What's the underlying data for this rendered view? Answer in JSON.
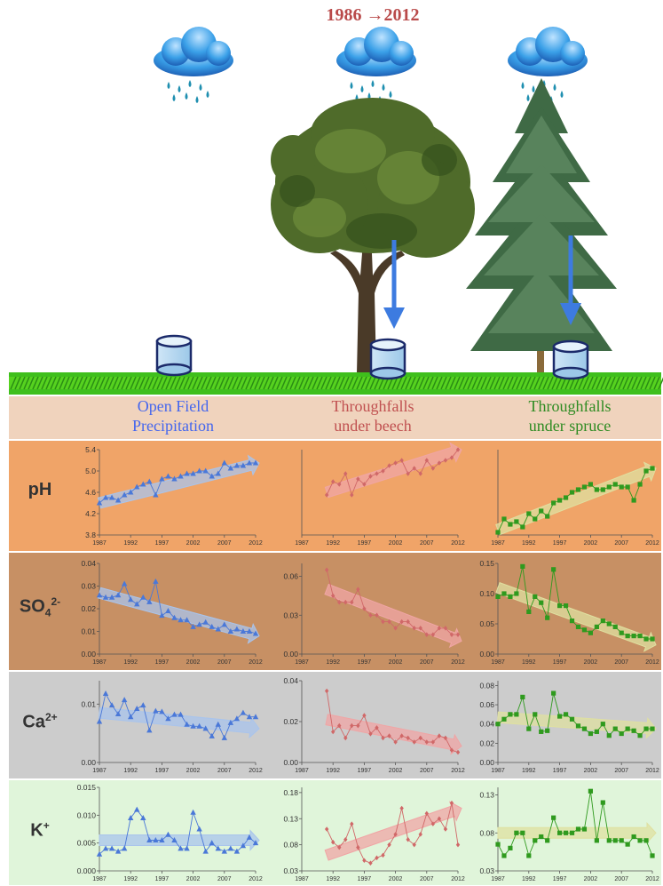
{
  "period_label": "1986 →2012",
  "columns": [
    {
      "label_line1": "Open Field",
      "label_line2": "Precipitation",
      "color": "#4466ee"
    },
    {
      "label_line1": "Throughfalls",
      "label_line2": "under beech",
      "color": "#c05050"
    },
    {
      "label_line1": "Throughfalls",
      "label_line2": "under spruce",
      "color": "#2e8b22"
    }
  ],
  "rows": [
    {
      "label": "pH",
      "sup": "",
      "sub": "",
      "band_color": "#f0a468"
    },
    {
      "label": "SO",
      "sub": "4",
      "sup": "2-",
      "band_color": "#c79064"
    },
    {
      "label": "Ca",
      "sub": "",
      "sup": "2+",
      "band_color": "#cccccc"
    },
    {
      "label": "K",
      "sub": "",
      "sup": "+",
      "band_color": "#e0f5da"
    }
  ],
  "x_tick_labels": [
    "1987",
    "1992",
    "1997",
    "2002",
    "2007",
    "2012"
  ],
  "series_colors": {
    "open_field": "#4a78d8",
    "beech": "#d06868",
    "spruce": "#2f9a1e"
  },
  "trend_colors": {
    "open_field": "#a9c4ec",
    "beech": "#f0a5a5",
    "spruce": "#dfe0a0"
  },
  "chart_data": [
    {
      "type": "line",
      "row": "pH",
      "column": "Open Field Precipitation",
      "marker": "triangle",
      "x": [
        1987,
        1988,
        1989,
        1990,
        1991,
        1992,
        1993,
        1994,
        1995,
        1996,
        1997,
        1998,
        1999,
        2000,
        2001,
        2002,
        2003,
        2004,
        2005,
        2006,
        2007,
        2008,
        2009,
        2010,
        2011,
        2012
      ],
      "values": [
        4.4,
        4.5,
        4.5,
        4.45,
        4.55,
        4.6,
        4.7,
        4.75,
        4.8,
        4.55,
        4.85,
        4.9,
        4.85,
        4.9,
        4.95,
        4.95,
        5.0,
        5.0,
        4.9,
        4.95,
        5.15,
        5.05,
        5.1,
        5.1,
        5.15,
        5.15
      ],
      "ylim": [
        3.8,
        5.4
      ],
      "yticks": [
        "3.8",
        "4.2",
        "4.6",
        "5.0",
        "5.4"
      ],
      "ytick_values": [
        3.8,
        4.2,
        4.6,
        5.0,
        5.4
      ],
      "trend": [
        4.4,
        5.15
      ],
      "xlim": [
        1987,
        2012
      ]
    },
    {
      "type": "line",
      "row": "pH",
      "column": "Throughfalls under beech",
      "marker": "diamond",
      "x": [
        1991,
        1992,
        1993,
        1994,
        1995,
        1996,
        1997,
        1998,
        1999,
        2000,
        2001,
        2002,
        2003,
        2004,
        2005,
        2006,
        2007,
        2008,
        2009,
        2010,
        2011,
        2012
      ],
      "values": [
        4.55,
        4.8,
        4.75,
        4.95,
        4.55,
        4.85,
        4.75,
        4.9,
        4.95,
        5.0,
        5.1,
        5.15,
        5.2,
        4.95,
        5.05,
        4.95,
        5.2,
        5.05,
        5.15,
        5.2,
        5.25,
        5.4
      ],
      "ylim": [
        3.8,
        5.4
      ],
      "yticks": [],
      "ytick_values": [],
      "trend": [
        4.6,
        5.4
      ],
      "xlim": [
        1987,
        2012
      ]
    },
    {
      "type": "line",
      "row": "pH",
      "column": "Throughfalls under spruce",
      "marker": "square",
      "x": [
        1987,
        1988,
        1989,
        1990,
        1991,
        1992,
        1993,
        1994,
        1995,
        1996,
        1997,
        1998,
        1999,
        2000,
        2001,
        2002,
        2003,
        2004,
        2005,
        2006,
        2007,
        2008,
        2009,
        2010,
        2011,
        2012
      ],
      "values": [
        3.85,
        4.1,
        4.0,
        4.05,
        3.95,
        4.2,
        4.1,
        4.25,
        4.15,
        4.4,
        4.45,
        4.5,
        4.6,
        4.65,
        4.7,
        4.75,
        4.65,
        4.65,
        4.7,
        4.75,
        4.7,
        4.7,
        4.45,
        4.75,
        5.0,
        5.05
      ],
      "ylim": [
        3.8,
        5.4
      ],
      "yticks": [],
      "ytick_values": [],
      "trend": [
        3.9,
        5.05
      ],
      "xlim": [
        1987,
        2012
      ]
    },
    {
      "type": "line",
      "row": "SO4 2-",
      "column": "Open Field Precipitation",
      "marker": "triangle",
      "x": [
        1987,
        1988,
        1989,
        1990,
        1991,
        1992,
        1993,
        1994,
        1995,
        1996,
        1997,
        1998,
        1999,
        2000,
        2001,
        2002,
        2003,
        2004,
        2005,
        2006,
        2007,
        2008,
        2009,
        2010,
        2011,
        2012
      ],
      "values": [
        0.026,
        0.025,
        0.025,
        0.026,
        0.031,
        0.024,
        0.022,
        0.025,
        0.023,
        0.032,
        0.017,
        0.019,
        0.016,
        0.015,
        0.015,
        0.012,
        0.013,
        0.014,
        0.012,
        0.011,
        0.013,
        0.01,
        0.011,
        0.01,
        0.01,
        0.009
      ],
      "ylim": [
        0,
        0.04
      ],
      "yticks": [
        "0.00",
        "0.01",
        "0.02",
        "0.03",
        "0.04"
      ],
      "ytick_values": [
        0,
        0.01,
        0.02,
        0.03,
        0.04
      ],
      "trend": [
        0.027,
        0.008
      ],
      "xlim": [
        1987,
        2012
      ]
    },
    {
      "type": "line",
      "row": "SO4 2-",
      "column": "Throughfalls under beech",
      "marker": "diamond",
      "x": [
        1991,
        1992,
        1993,
        1994,
        1995,
        1996,
        1997,
        1998,
        1999,
        2000,
        2001,
        2002,
        2003,
        2004,
        2005,
        2006,
        2007,
        2008,
        2009,
        2010,
        2011,
        2012
      ],
      "values": [
        0.065,
        0.045,
        0.04,
        0.04,
        0.04,
        0.05,
        0.035,
        0.03,
        0.03,
        0.025,
        0.025,
        0.02,
        0.025,
        0.025,
        0.02,
        0.02,
        0.015,
        0.015,
        0.02,
        0.02,
        0.015,
        0.015
      ],
      "ylim": [
        0,
        0.07
      ],
      "yticks": [
        "0.00",
        "0.03",
        "0.06"
      ],
      "ytick_values": [
        0,
        0.03,
        0.06
      ],
      "trend": [
        0.05,
        0.01
      ],
      "xlim": [
        1987,
        2012
      ]
    },
    {
      "type": "line",
      "row": "SO4 2-",
      "column": "Throughfalls under spruce",
      "marker": "square",
      "x": [
        1987,
        1988,
        1989,
        1990,
        1991,
        1992,
        1993,
        1994,
        1995,
        1996,
        1997,
        1998,
        1999,
        2000,
        2001,
        2002,
        2003,
        2004,
        2005,
        2006,
        2007,
        2008,
        2009,
        2010,
        2011,
        2012
      ],
      "values": [
        0.095,
        0.1,
        0.095,
        0.1,
        0.145,
        0.07,
        0.095,
        0.085,
        0.06,
        0.14,
        0.08,
        0.08,
        0.055,
        0.045,
        0.04,
        0.035,
        0.045,
        0.055,
        0.05,
        0.045,
        0.035,
        0.03,
        0.03,
        0.03,
        0.025,
        0.025
      ],
      "ylim": [
        0,
        0.15
      ],
      "yticks": [
        "0.00",
        "0.05",
        "0.10",
        "0.15"
      ],
      "ytick_values": [
        0,
        0.05,
        0.1,
        0.15
      ],
      "trend": [
        0.11,
        0.015
      ],
      "xlim": [
        1987,
        2012
      ]
    },
    {
      "type": "line",
      "row": "Ca 2+",
      "column": "Open Field Precipitation",
      "marker": "triangle",
      "x": [
        1987,
        1988,
        1989,
        1990,
        1991,
        1992,
        1993,
        1994,
        1995,
        1996,
        1997,
        1998,
        1999,
        2000,
        2001,
        2002,
        2003,
        2004,
        2005,
        2006,
        2007,
        2008,
        2009,
        2010,
        2011,
        2012
      ],
      "values": [
        0.007,
        0.0118,
        0.0098,
        0.0083,
        0.0107,
        0.0078,
        0.0092,
        0.0098,
        0.0055,
        0.0088,
        0.0087,
        0.0075,
        0.0082,
        0.0082,
        0.0065,
        0.0062,
        0.0062,
        0.0058,
        0.0045,
        0.0065,
        0.0042,
        0.0068,
        0.0075,
        0.0085,
        0.0078,
        0.0078
      ],
      "ylim": [
        0,
        0.014
      ],
      "yticks": [
        "0.00",
        "0.01"
      ],
      "ytick_values": [
        0,
        0.01
      ],
      "trend": [
        0.0085,
        0.0058
      ],
      "xlim": [
        1987,
        2012
      ]
    },
    {
      "type": "line",
      "row": "Ca 2+",
      "column": "Throughfalls under beech",
      "marker": "diamond",
      "x": [
        1991,
        1992,
        1993,
        1994,
        1995,
        1996,
        1997,
        1998,
        1999,
        2000,
        2001,
        2002,
        2003,
        2004,
        2005,
        2006,
        2007,
        2008,
        2009,
        2010,
        2011,
        2012
      ],
      "values": [
        0.035,
        0.015,
        0.018,
        0.012,
        0.018,
        0.018,
        0.023,
        0.014,
        0.017,
        0.012,
        0.013,
        0.01,
        0.013,
        0.012,
        0.01,
        0.012,
        0.01,
        0.01,
        0.013,
        0.012,
        0.006,
        0.005
      ],
      "ylim": [
        0,
        0.04
      ],
      "yticks": [
        "0.00",
        "0.02",
        "0.04"
      ],
      "ytick_values": [
        0,
        0.02,
        0.04
      ],
      "trend": [
        0.021,
        0.008
      ],
      "xlim": [
        1987,
        2012
      ]
    },
    {
      "type": "line",
      "row": "Ca 2+",
      "column": "Throughfalls under spruce",
      "marker": "square",
      "x": [
        1987,
        1988,
        1989,
        1990,
        1991,
        1992,
        1993,
        1994,
        1995,
        1996,
        1997,
        1998,
        1999,
        2000,
        2001,
        2002,
        2003,
        2004,
        2005,
        2006,
        2007,
        2008,
        2009,
        2010,
        2011,
        2012
      ],
      "values": [
        0.04,
        0.045,
        0.05,
        0.05,
        0.068,
        0.035,
        0.05,
        0.032,
        0.033,
        0.072,
        0.048,
        0.05,
        0.045,
        0.038,
        0.035,
        0.03,
        0.032,
        0.04,
        0.028,
        0.035,
        0.03,
        0.035,
        0.033,
        0.028,
        0.035,
        0.035
      ],
      "ylim": [
        0,
        0.085
      ],
      "yticks": [
        "0.00",
        "0.02",
        "0.04",
        "0.06",
        "0.08"
      ],
      "ytick_values": [
        0,
        0.02,
        0.04,
        0.06,
        0.08
      ],
      "trend": [
        0.047,
        0.035
      ],
      "xlim": [
        1987,
        2012
      ]
    },
    {
      "type": "line",
      "row": "K +",
      "column": "Open Field Precipitation",
      "marker": "triangle",
      "x": [
        1987,
        1988,
        1989,
        1990,
        1991,
        1992,
        1993,
        1994,
        1995,
        1996,
        1997,
        1998,
        1999,
        2000,
        2001,
        2002,
        2003,
        2004,
        2005,
        2006,
        2007,
        2008,
        2009,
        2010,
        2011,
        2012
      ],
      "values": [
        0.003,
        0.004,
        0.004,
        0.0035,
        0.004,
        0.0095,
        0.011,
        0.0095,
        0.0055,
        0.0055,
        0.0055,
        0.0065,
        0.0055,
        0.004,
        0.004,
        0.0105,
        0.0075,
        0.0035,
        0.005,
        0.004,
        0.0035,
        0.004,
        0.0035,
        0.0045,
        0.006,
        0.005
      ],
      "ylim": [
        0,
        0.015
      ],
      "yticks": [
        "0.000",
        "0.005",
        "0.010",
        "0.015"
      ],
      "ytick_values": [
        0,
        0.005,
        0.01,
        0.015
      ],
      "trend": [
        0.0055,
        0.0055
      ],
      "xlim": [
        1987,
        2012
      ]
    },
    {
      "type": "line",
      "row": "K +",
      "column": "Throughfalls under beech",
      "marker": "diamond",
      "x": [
        1991,
        1992,
        1993,
        1994,
        1995,
        1996,
        1997,
        1998,
        1999,
        2000,
        2001,
        2002,
        2003,
        2004,
        2005,
        2006,
        2007,
        2008,
        2009,
        2010,
        2011,
        2012
      ],
      "values": [
        0.11,
        0.085,
        0.075,
        0.09,
        0.12,
        0.075,
        0.05,
        0.045,
        0.055,
        0.06,
        0.08,
        0.1,
        0.15,
        0.09,
        0.08,
        0.1,
        0.14,
        0.12,
        0.13,
        0.11,
        0.16,
        0.08
      ],
      "ylim": [
        0.03,
        0.19
      ],
      "yticks": [
        "0.03",
        "0.08",
        "0.13",
        "0.18"
      ],
      "ytick_values": [
        0.03,
        0.08,
        0.13,
        0.18
      ],
      "trend": [
        0.06,
        0.15
      ],
      "xlim": [
        1987,
        2012
      ]
    },
    {
      "type": "line",
      "row": "K +",
      "column": "Throughfalls under spruce",
      "marker": "square",
      "x": [
        1987,
        1988,
        1989,
        1990,
        1991,
        1992,
        1993,
        1994,
        1995,
        1996,
        1997,
        1998,
        1999,
        2000,
        2001,
        2002,
        2003,
        2004,
        2005,
        2006,
        2007,
        2008,
        2009,
        2010,
        2011,
        2012
      ],
      "values": [
        0.065,
        0.05,
        0.06,
        0.08,
        0.08,
        0.05,
        0.07,
        0.075,
        0.07,
        0.1,
        0.08,
        0.08,
        0.08,
        0.085,
        0.085,
        0.135,
        0.07,
        0.12,
        0.07,
        0.07,
        0.07,
        0.065,
        0.075,
        0.07,
        0.07,
        0.05
      ],
      "ylim": [
        0.03,
        0.14
      ],
      "yticks": [
        "0.03",
        "0.08",
        "0.13"
      ],
      "ytick_values": [
        0.03,
        0.08,
        0.13
      ],
      "trend": [
        0.08,
        0.08
      ],
      "xlim": [
        1987,
        2012
      ]
    }
  ]
}
